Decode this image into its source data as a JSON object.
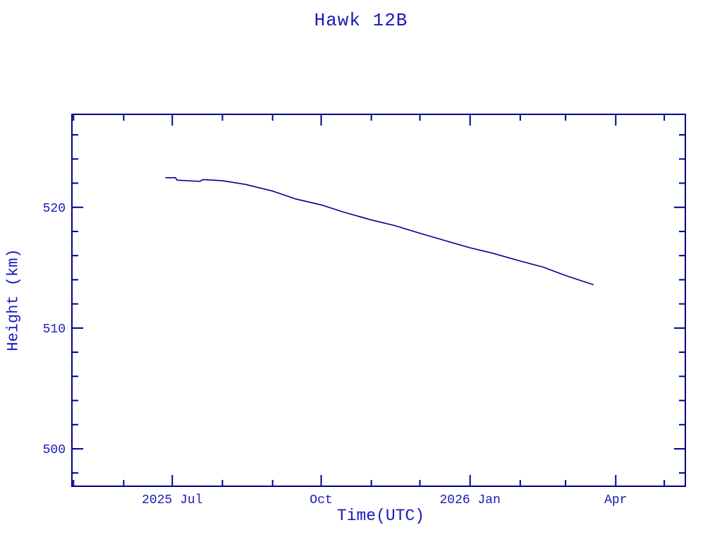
{
  "chart_data": {
    "type": "line",
    "title": "Hawk 12B",
    "xlabel": "Time(UTC)",
    "ylabel": "Height (km)",
    "xlim": [
      "2025-04-30",
      "2026-05-14"
    ],
    "ylim": [
      496.9,
      527.7
    ],
    "grid": false,
    "legend": "none",
    "colors": {
      "line": "#00008b",
      "axis": "#00008b",
      "text": "#1a1ab8",
      "background": "#ffffff"
    },
    "y_ticks": {
      "major": [
        500,
        510,
        520
      ],
      "minor_step": 2
    },
    "x_ticks": {
      "major": [
        {
          "date": "2025-07-01",
          "label": "2025 Jul"
        },
        {
          "date": "2025-10-01",
          "label": "Oct"
        },
        {
          "date": "2026-01-01",
          "label": "2026 Jan"
        },
        {
          "date": "2026-04-01",
          "label": "Apr"
        }
      ],
      "minor": [
        "2025-05-01",
        "2025-06-01",
        "2025-08-01",
        "2025-09-01",
        "2025-11-01",
        "2025-12-01",
        "2026-02-01",
        "2026-03-01",
        "2026-05-01"
      ]
    },
    "series": [
      {
        "name": "Hawk 12B height",
        "points": [
          [
            "2025-06-27",
            522.45
          ],
          [
            "2025-07-03",
            522.45
          ],
          [
            "2025-07-04",
            522.25
          ],
          [
            "2025-07-18",
            522.15
          ],
          [
            "2025-07-20",
            522.3
          ],
          [
            "2025-08-01",
            522.2
          ],
          [
            "2025-08-15",
            521.9
          ],
          [
            "2025-09-01",
            521.35
          ],
          [
            "2025-09-15",
            520.7
          ],
          [
            "2025-10-01",
            520.2
          ],
          [
            "2025-10-15",
            519.6
          ],
          [
            "2025-11-01",
            518.95
          ],
          [
            "2025-11-15",
            518.5
          ],
          [
            "2025-12-01",
            517.85
          ],
          [
            "2025-12-15",
            517.3
          ],
          [
            "2026-01-01",
            516.65
          ],
          [
            "2026-01-15",
            516.2
          ],
          [
            "2026-02-01",
            515.55
          ],
          [
            "2026-02-15",
            515.05
          ],
          [
            "2026-03-01",
            514.35
          ],
          [
            "2026-03-10",
            513.95
          ],
          [
            "2026-03-18",
            513.6
          ]
        ]
      }
    ]
  }
}
